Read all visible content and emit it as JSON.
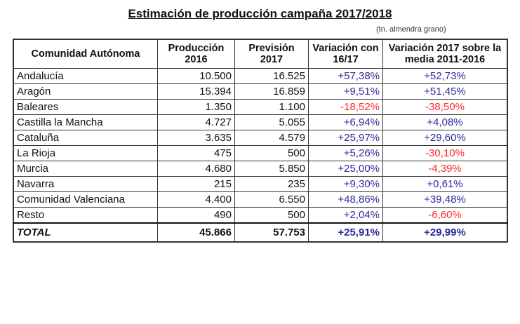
{
  "title": "Estimación de producción campaña 2017/2018",
  "unit": "(tn. almendra grano)",
  "colors": {
    "positive": "#2b2b9e",
    "negative": "#ff2a2a"
  },
  "headers": [
    "Comunidad Autónoma",
    "Producción 2016",
    "Previsión 2017",
    "Variación con 16/17",
    "Variación 2017 sobre la media 2011-2016"
  ],
  "rows": [
    [
      "Andalucía",
      "10.500",
      "16.525",
      "+57,38%",
      "+52,73%"
    ],
    [
      "Aragón",
      "15.394",
      "16.859",
      "+9,51%",
      "+51,45%"
    ],
    [
      "Baleares",
      "1.350",
      "1.100",
      "-18,52%",
      "-38,50%"
    ],
    [
      "Castilla la Mancha",
      "4.727",
      "5.055",
      "+6,94%",
      "+4,08%"
    ],
    [
      "Cataluña",
      "3.635",
      "4.579",
      "+25,97%",
      "+29,60%"
    ],
    [
      "La Rioja",
      "475",
      "500",
      "+5,26%",
      "-30,10%"
    ],
    [
      "Murcia",
      "4.680",
      "5.850",
      "+25,00%",
      "-4,39%"
    ],
    [
      "Navarra",
      "215",
      "235",
      "+9,30%",
      "+0,61%"
    ],
    [
      "Comunidad Valenciana",
      "4.400",
      "6.550",
      "+48,86%",
      "+39,48%"
    ],
    [
      "Resto",
      "490",
      "500",
      "+2,04%",
      "-6,60%"
    ]
  ],
  "total": [
    "TOTAL",
    "45.866",
    "57.753",
    "+25,91%",
    "+29,99%"
  ]
}
